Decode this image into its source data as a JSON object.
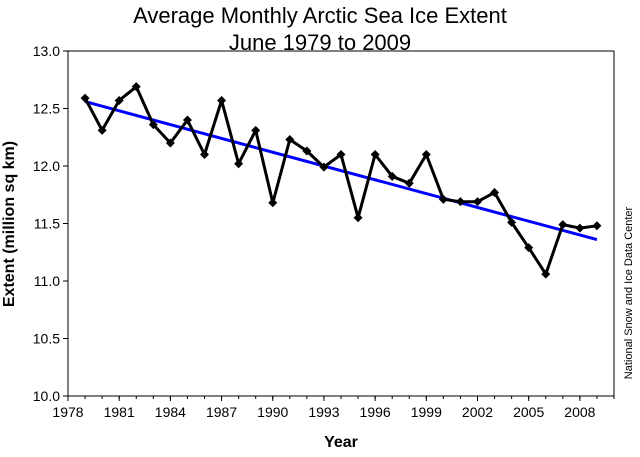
{
  "chart_data": {
    "type": "line",
    "title": "Average Monthly Arctic Sea Ice Extent",
    "subtitle": "June 1979 to 2009",
    "xlabel": "Year",
    "ylabel": "Extent (million sq km)",
    "credit": "National Snow and Ice Data Center",
    "xlim": [
      1978,
      2010
    ],
    "ylim": [
      10.0,
      13.0
    ],
    "x_ticks": [
      "1978",
      "1981",
      "1984",
      "1987",
      "1990",
      "1993",
      "1996",
      "1999",
      "2002",
      "2005",
      "2008"
    ],
    "y_ticks": [
      "10.0",
      "10.5",
      "11.0",
      "11.5",
      "12.0",
      "12.5",
      "13.0"
    ],
    "grid": false,
    "legend": "none",
    "series": [
      {
        "color": "#000000",
        "marker": "diamond",
        "x": [
          1979,
          1980,
          1981,
          1982,
          1983,
          1984,
          1985,
          1986,
          1987,
          1988,
          1989,
          1990,
          1991,
          1992,
          1993,
          1994,
          1995,
          1996,
          1997,
          1998,
          1999,
          2000,
          2001,
          2002,
          2003,
          2004,
          2005,
          2006,
          2007,
          2008,
          2009
        ],
        "values": [
          12.59,
          12.31,
          12.57,
          12.69,
          12.36,
          12.2,
          12.4,
          12.1,
          12.57,
          12.02,
          12.31,
          11.68,
          12.23,
          12.13,
          11.99,
          12.1,
          11.55,
          12.1,
          11.91,
          11.85,
          12.1,
          11.71,
          11.69,
          11.69,
          11.77,
          11.51,
          11.29,
          11.06,
          11.49,
          11.46,
          11.48
        ]
      }
    ],
    "trendline": {
      "color": "#0000ff",
      "x": [
        1979,
        2009
      ],
      "values": [
        12.56,
        11.36
      ]
    }
  }
}
